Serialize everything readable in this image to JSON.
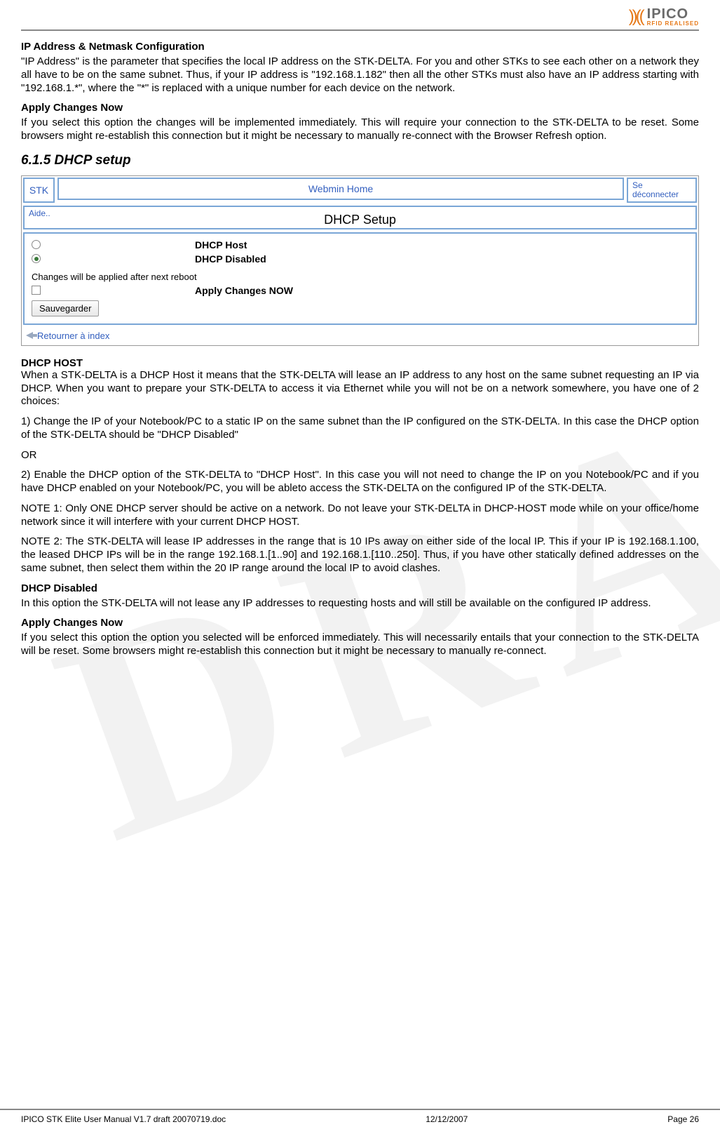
{
  "logo": {
    "name": "IPICO",
    "tagline": "RFID REALISED"
  },
  "sections": {
    "ip_title": "IP Address & Netmask Configuration",
    "ip_para": "\"IP Address\" is the parameter that specifies the local IP address on the STK-DELTA. For you and other STKs to see each other on a network they all have to be on the same subnet. Thus, if your IP address is \"192.168.1.182\" then all the other STKs must also have an IP address starting with \"192.168.1.*\", where the \"*\" is replaced with a unique number for each device on the network.",
    "apply1_title": "Apply Changes Now",
    "apply1_para": "If you select this option the changes will be implemented immediately. This will require your connection to the STK-DELTA to be reset. Some browsers might re-establish this connection but it might be necessary to manually re-connect with the Browser Refresh option.",
    "dhcp_section": "6.1.5   DHCP setup",
    "dhcp_host_title": "DHCP HOST",
    "dhcp_host_para": "When a STK-DELTA is a DHCP Host it means that the STK-DELTA will lease an IP address to any host on the same subnet requesting an IP via DHCP. When you want to prepare your STK-DELTA to access it via Ethernet while you will not be on a network somewhere, you have one of 2 choices:",
    "opt1": "1) Change the IP of your Notebook/PC to a static IP on the same subnet than the IP configured on the STK-DELTA. In this case the DHCP option of the STK-DELTA should be \"DHCP Disabled\"",
    "or": "OR",
    "opt2": "2) Enable the DHCP option of the STK-DELTA to \"DHCP Host\". In this case you will not need to change the IP on you Notebook/PC and if you have DHCP enabled on your Notebook/PC, you will be ableto access the STK-DELTA on the configured IP of the STK-DELTA.",
    "note1": "NOTE 1: Only ONE DHCP server should be active on a network. Do not leave your STK-DELTA in DHCP-HOST mode while on your office/home network since it will interfere with your current DHCP HOST.",
    "note2": "NOTE 2: The STK-DELTA will lease IP addresses in the range that is 10 IPs away on either side of the local IP. This if your IP is 192.168.1.100, the leased DHCP IPs will be in the range 192.168.1.[1..90] and 192.168.1.[110..250]. Thus, if you have other statically defined addresses on the same subnet, then select them within the 20 IP range around the local IP to avoid clashes.",
    "dhcp_dis_title": "DHCP Disabled",
    "dhcp_dis_para": "In this option the STK-DELTA will not lease any IP addresses to requesting hosts and will still be available on the configured IP address.",
    "apply2_title": "Apply Changes Now",
    "apply2_para": "If you select this option the option you selected will be enforced immediately. This will necessarily entails that your connection to the STK-DELTA will be reset. Some browsers might re-establish this connection but it might be necessary to manually re-connect."
  },
  "ui": {
    "stk": "STK",
    "webmin": "Webmin Home",
    "logout1": "Se",
    "logout2": "déconnecter",
    "aide": "Aide..",
    "title": "DHCP Setup",
    "opt_host": "DHCP Host",
    "opt_disabled": "DHCP Disabled",
    "reboot_note": "Changes will be applied after next reboot",
    "apply_now": "Apply Changes NOW",
    "save": "Sauvegarder",
    "return": "Retourner à index"
  },
  "footer": {
    "left": "IPICO STK Elite User Manual V1.7 draft 20070719.doc",
    "center": "12/12/2007",
    "right": "Page 26"
  },
  "colors": {
    "border_blue": "#7aa6d6",
    "link_blue": "#335fbf",
    "orange": "#e67817",
    "rule_gray": "#888888"
  }
}
